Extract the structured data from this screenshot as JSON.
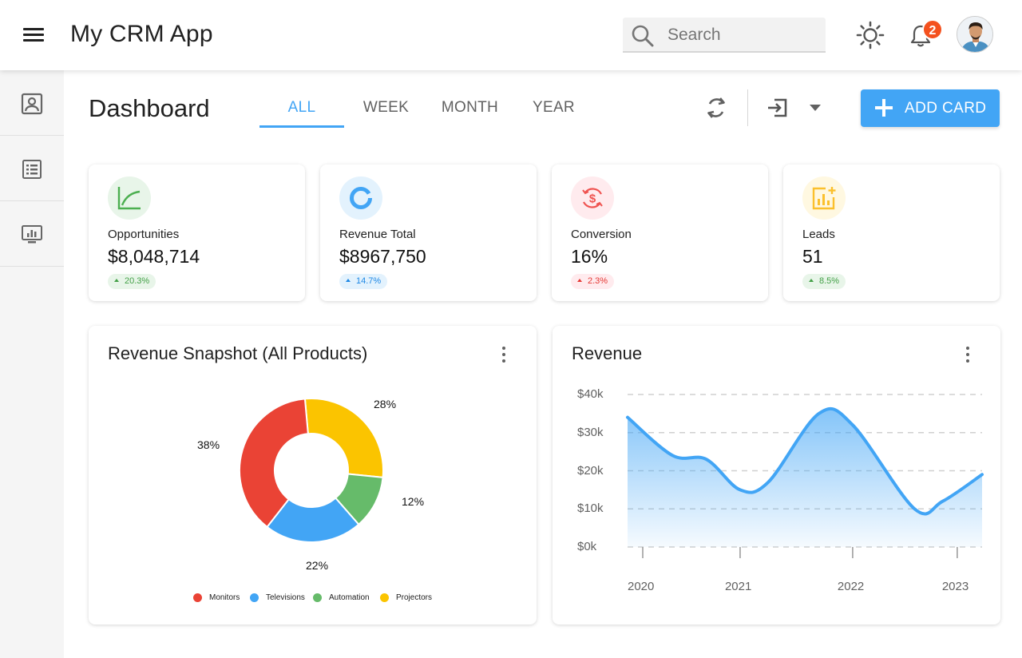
{
  "header": {
    "title": "My CRM App",
    "search_placeholder": "Search",
    "notification_count": "2",
    "icons": [
      "menu-icon",
      "search-icon",
      "sun-icon",
      "bell-icon",
      "avatar"
    ]
  },
  "sidebar": {
    "items": [
      {
        "name": "contacts",
        "icon": "contact-card-icon"
      },
      {
        "name": "list",
        "icon": "list-icon"
      },
      {
        "name": "reports",
        "icon": "monitor-chart-icon"
      }
    ]
  },
  "page": {
    "title": "Dashboard",
    "tabs": [
      {
        "label": "ALL",
        "active": true
      },
      {
        "label": "WEEK",
        "active": false
      },
      {
        "label": "MONTH",
        "active": false
      },
      {
        "label": "YEAR",
        "active": false
      }
    ],
    "add_card_label": "ADD CARD",
    "accent_color": "#42a5f5"
  },
  "stats": [
    {
      "label": "Opportunities",
      "value": "$8,048,714",
      "change": "20.3%",
      "trend": "up",
      "color": "#4caf50",
      "bg": "#e8f5e9",
      "icon": "trend-chart-icon"
    },
    {
      "label": "Revenue Total",
      "value": "$8967,750",
      "change": "14.7%",
      "trend": "up",
      "color": "#42a5f5",
      "bg": "#e3f2fd",
      "icon": "donut-icon"
    },
    {
      "label": "Conversion",
      "value": "16%",
      "change": "2.3%",
      "trend": "up",
      "color": "#ef5350",
      "bg": "#ffebee",
      "icon": "dollar-cycle-icon"
    },
    {
      "label": "Leads",
      "value": "51",
      "change": "8.5%",
      "trend": "up",
      "color": "#fbc02d",
      "bg": "#fff8e1",
      "icon": "bar-chart-plus-icon"
    }
  ],
  "revenue_snapshot": {
    "title": "Revenue Snapshot (All Products)"
  },
  "revenue": {
    "title": "Revenue"
  },
  "chart_data": [
    {
      "type": "pie",
      "title": "Revenue Snapshot (All Products)",
      "categories": [
        "Monitors",
        "Televisions",
        "Automation",
        "Projectors"
      ],
      "values": [
        38,
        22,
        12,
        28
      ],
      "labels": [
        "38%",
        "22%",
        "12%",
        "28%"
      ],
      "colors": [
        "#ea4335",
        "#42a5f5",
        "#66bb6a",
        "#fbc400"
      ],
      "donut": true,
      "legend": "bottom"
    },
    {
      "type": "area",
      "title": "Revenue",
      "x_ticks": [
        "2020",
        "2021",
        "2022",
        "2023"
      ],
      "y_ticks": [
        "$0k",
        "$10k",
        "$20k",
        "$30k",
        "$40k"
      ],
      "ylim": [
        0,
        40
      ],
      "xlim": [
        2020.0,
        2023.15
      ],
      "series": [
        {
          "x": [
            2020.0,
            2020.4,
            2020.7,
            2021.0,
            2021.25,
            2021.7,
            2022.0,
            2022.55,
            2022.8,
            2023.15
          ],
          "y": [
            34,
            24,
            23,
            15,
            17,
            35,
            32,
            10,
            12,
            19
          ]
        }
      ],
      "grid": true,
      "color": "#42a5f5"
    }
  ]
}
